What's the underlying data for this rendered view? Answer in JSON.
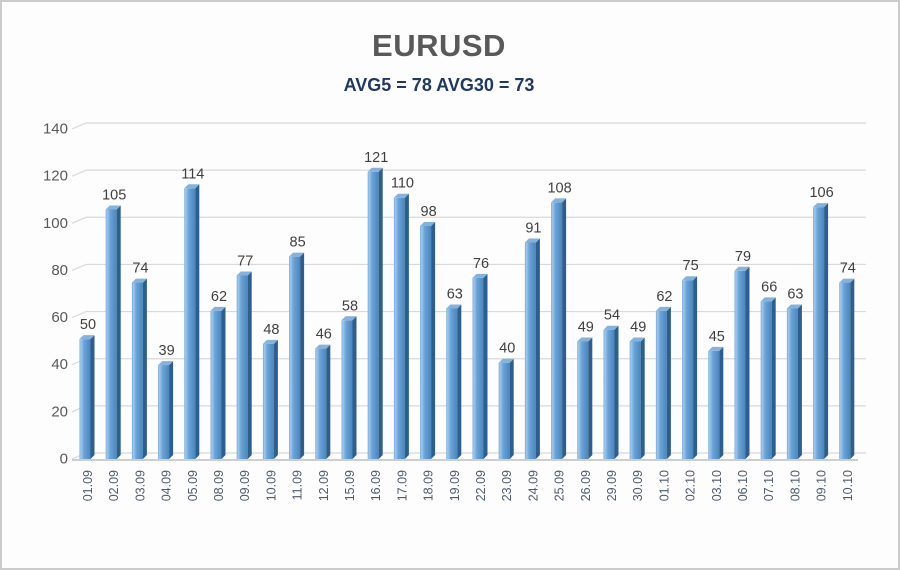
{
  "window": {
    "background": "#fdfdfd",
    "border_color": "#cbcbcb"
  },
  "chart_data": {
    "type": "bar",
    "style": "3d-column",
    "title": "EURUSD",
    "subtitle": "AVG5 = 78 AVG30 = 73",
    "avg5": 78,
    "avg30": 73,
    "categories": [
      "01.09",
      "02.09",
      "03.09",
      "04.09",
      "05.09",
      "08.09",
      "09.09",
      "10.09",
      "11.09",
      "12.09",
      "15.09",
      "16.09",
      "17.09",
      "18.09",
      "19.09",
      "22.09",
      "23.09",
      "24.09",
      "25.09",
      "26.09",
      "29.09",
      "30.09",
      "01.10",
      "02.10",
      "03.10",
      "06.10",
      "07.10",
      "08.10",
      "09.10",
      "10.10"
    ],
    "values": [
      50,
      105,
      74,
      39,
      114,
      62,
      77,
      48,
      85,
      46,
      58,
      121,
      110,
      98,
      63,
      76,
      40,
      91,
      108,
      49,
      54,
      49,
      62,
      75,
      45,
      79,
      66,
      63,
      106,
      74
    ],
    "xlabel": "",
    "ylabel": "",
    "ylim": [
      0,
      140
    ],
    "yticks": [
      0,
      20,
      40,
      60,
      80,
      100,
      120,
      140
    ],
    "grid": true,
    "legend": false,
    "data_labels": true,
    "colors": {
      "title": "#595959",
      "subtitle": "#1f3864",
      "bar_face_light": "#a3c9ec",
      "bar_face_mid": "#6aa3d8",
      "bar_face_dark": "#4a86bb",
      "bar_side": "#2e5e8e",
      "bar_cap": "#85b2da",
      "gridline": "#d9d9d9",
      "floor_line": "#bfbfbf",
      "y_axis_label": "#595959",
      "x_axis_label": "#4e5b6e",
      "data_label": "#3f3f3f"
    }
  }
}
